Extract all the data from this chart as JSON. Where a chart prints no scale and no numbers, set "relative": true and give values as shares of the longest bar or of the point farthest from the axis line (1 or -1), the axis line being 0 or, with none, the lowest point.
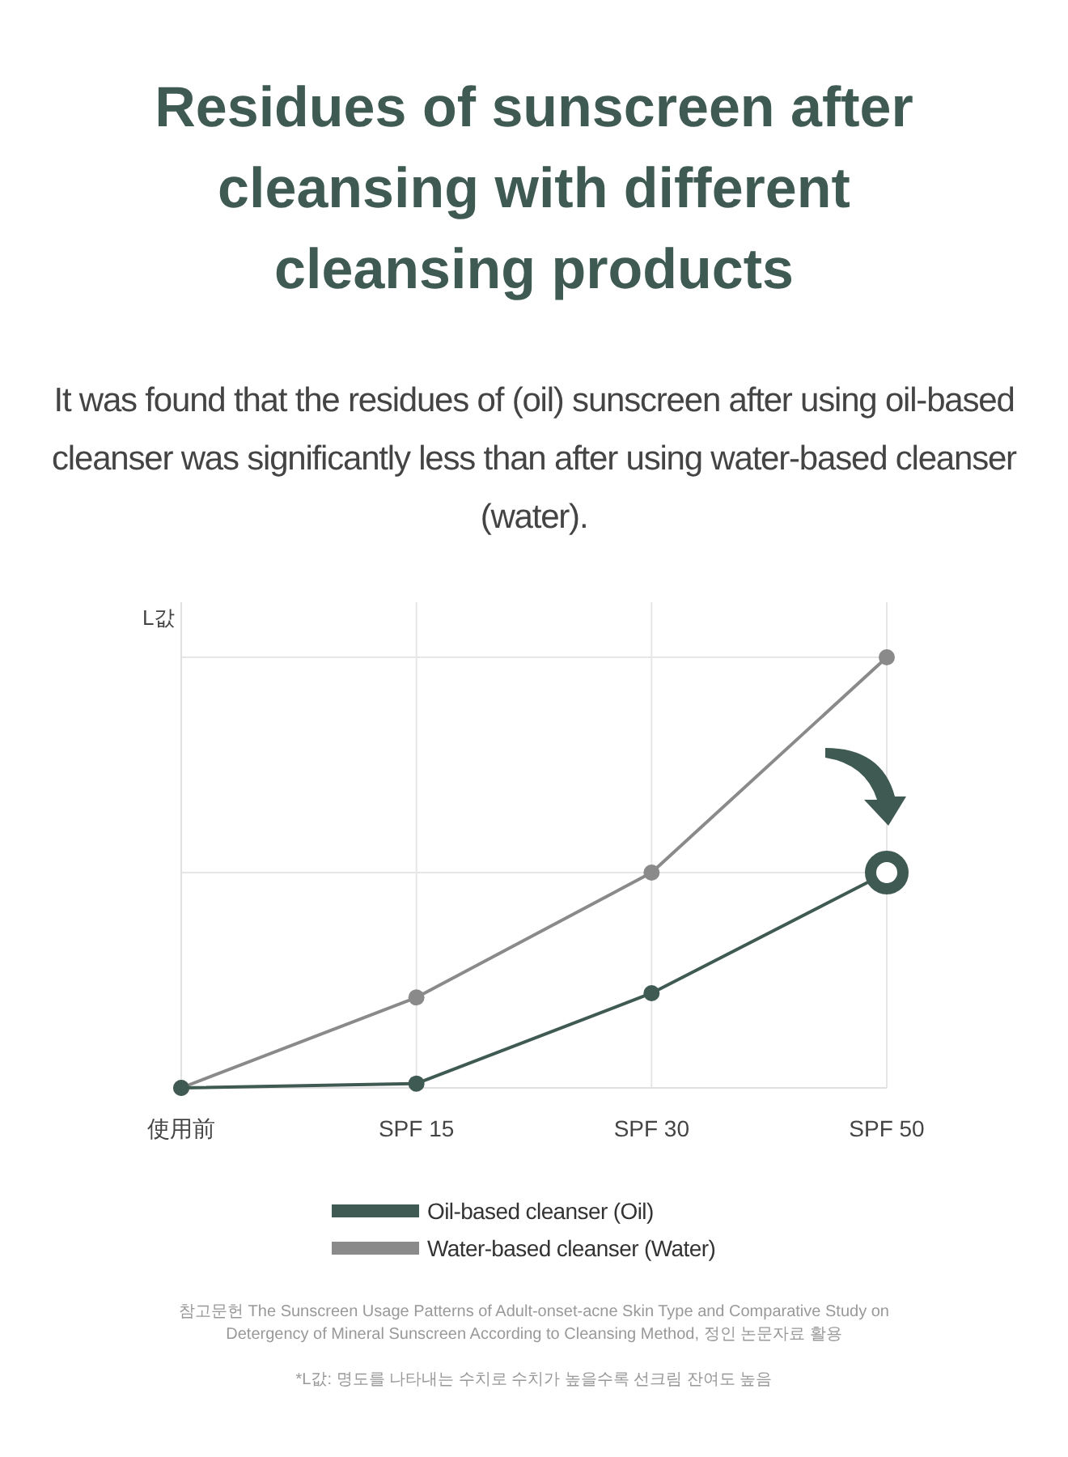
{
  "chart_data": {
    "type": "line",
    "title": "Residues of sunscreen after cleansing with different cleansing products",
    "subtitle": "It was found that the residues of (oil) sunscreen after using oil-based cleanser was significantly less than after using water-based cleanser (water).",
    "ylabel": "L값",
    "relative": true,
    "grid": true,
    "legend": "bottom",
    "marker": "circle",
    "line_style": "solid",
    "categories": [
      "使用前",
      "SPF 15",
      "SPF 30",
      "SPF 50"
    ],
    "series": [
      {
        "name": "Oil-based cleanser (Oil)",
        "color": "#3f5a52",
        "values": [
          0,
          0.01,
          0.22,
          0.5
        ]
      },
      {
        "name": "Water-based cleanser (Water)",
        "color": "#8a8a8a",
        "values": [
          0,
          0.21,
          0.5,
          1
        ]
      }
    ],
    "annotations": [
      "참고문헌 The Sunscreen Usage Patterns of Adult-onset-acne Skin Type and Comparative Study on Detergency of Mineral Sunscreen According to Cleansing Method, 정인 논문자료 활용",
      "*L값: 명도를 나타내는 수치로 수치가 높을수록 선크림 잔여도 높음"
    ]
  }
}
